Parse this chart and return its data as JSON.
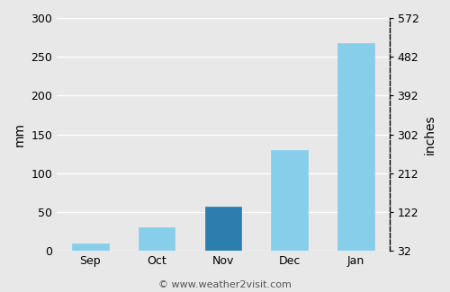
{
  "categories": [
    "Sep",
    "Oct",
    "Nov",
    "Dec",
    "Jan"
  ],
  "values": [
    10,
    30,
    57,
    130,
    268
  ],
  "bar_colors": [
    "#87CEEB",
    "#87CEEB",
    "#2E7DAF",
    "#87CEEB",
    "#87CEEB"
  ],
  "bar_edge_colors": [
    "#87CEEB",
    "#87CEEB",
    "#2E7DAF",
    "#87CEEB",
    "#87CEEB"
  ],
  "ylabel_left": "mm",
  "ylabel_right": "inches",
  "ylim_mm": [
    0,
    300
  ],
  "yticks_mm": [
    0,
    50,
    100,
    150,
    200,
    250,
    300
  ],
  "yticks_inches": [
    32,
    122,
    212,
    302,
    392,
    482,
    572
  ],
  "background_color": "#e8e8e8",
  "plot_bg_color": "#e8e8e8",
  "grid_color": "#ffffff",
  "copyright_text": "© www.weather2visit.com",
  "copyright_fontsize": 8,
  "axis_fontsize": 10,
  "tick_fontsize": 9
}
